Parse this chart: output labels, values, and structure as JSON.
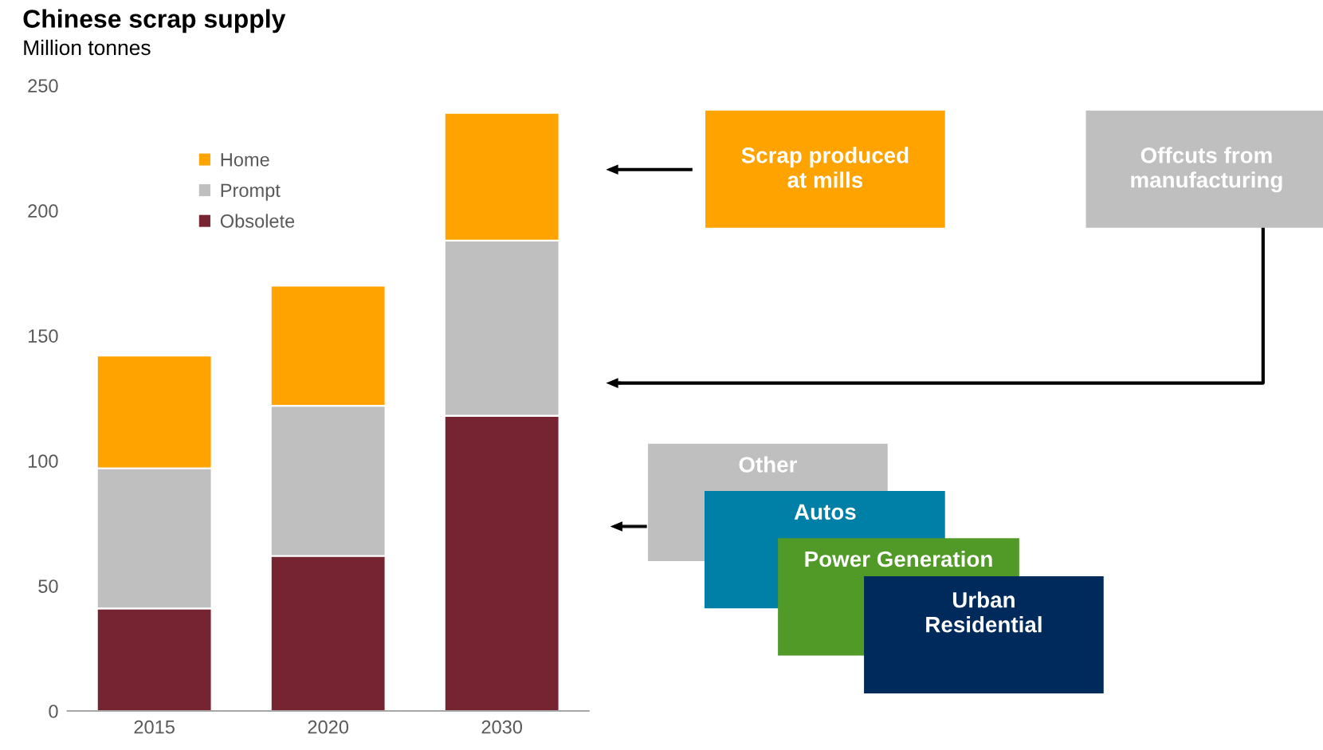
{
  "chart_data": {
    "type": "bar",
    "title": "Chinese scrap supply",
    "subtitle": "Million tonnes",
    "categories": [
      "2015",
      "2020",
      "2030"
    ],
    "stacked": true,
    "series": [
      {
        "name": "Obsolete",
        "color": "#772432",
        "values": [
          41,
          62,
          118
        ]
      },
      {
        "name": "Prompt",
        "color": "#bfbfbf",
        "values": [
          56,
          60,
          70
        ]
      },
      {
        "name": "Home",
        "color": "#ffa300",
        "values": [
          45,
          48,
          51
        ]
      }
    ],
    "ylim": [
      0,
      250
    ],
    "yticks": [
      0,
      50,
      100,
      150,
      200,
      250
    ],
    "grid": false,
    "legend": "top left",
    "annotations": [
      "Scrap produced\nat mills",
      "Offcuts from\nmanufacturing",
      "Other",
      "Autos",
      "Power Generation",
      "Urban\nResidential"
    ]
  }
}
